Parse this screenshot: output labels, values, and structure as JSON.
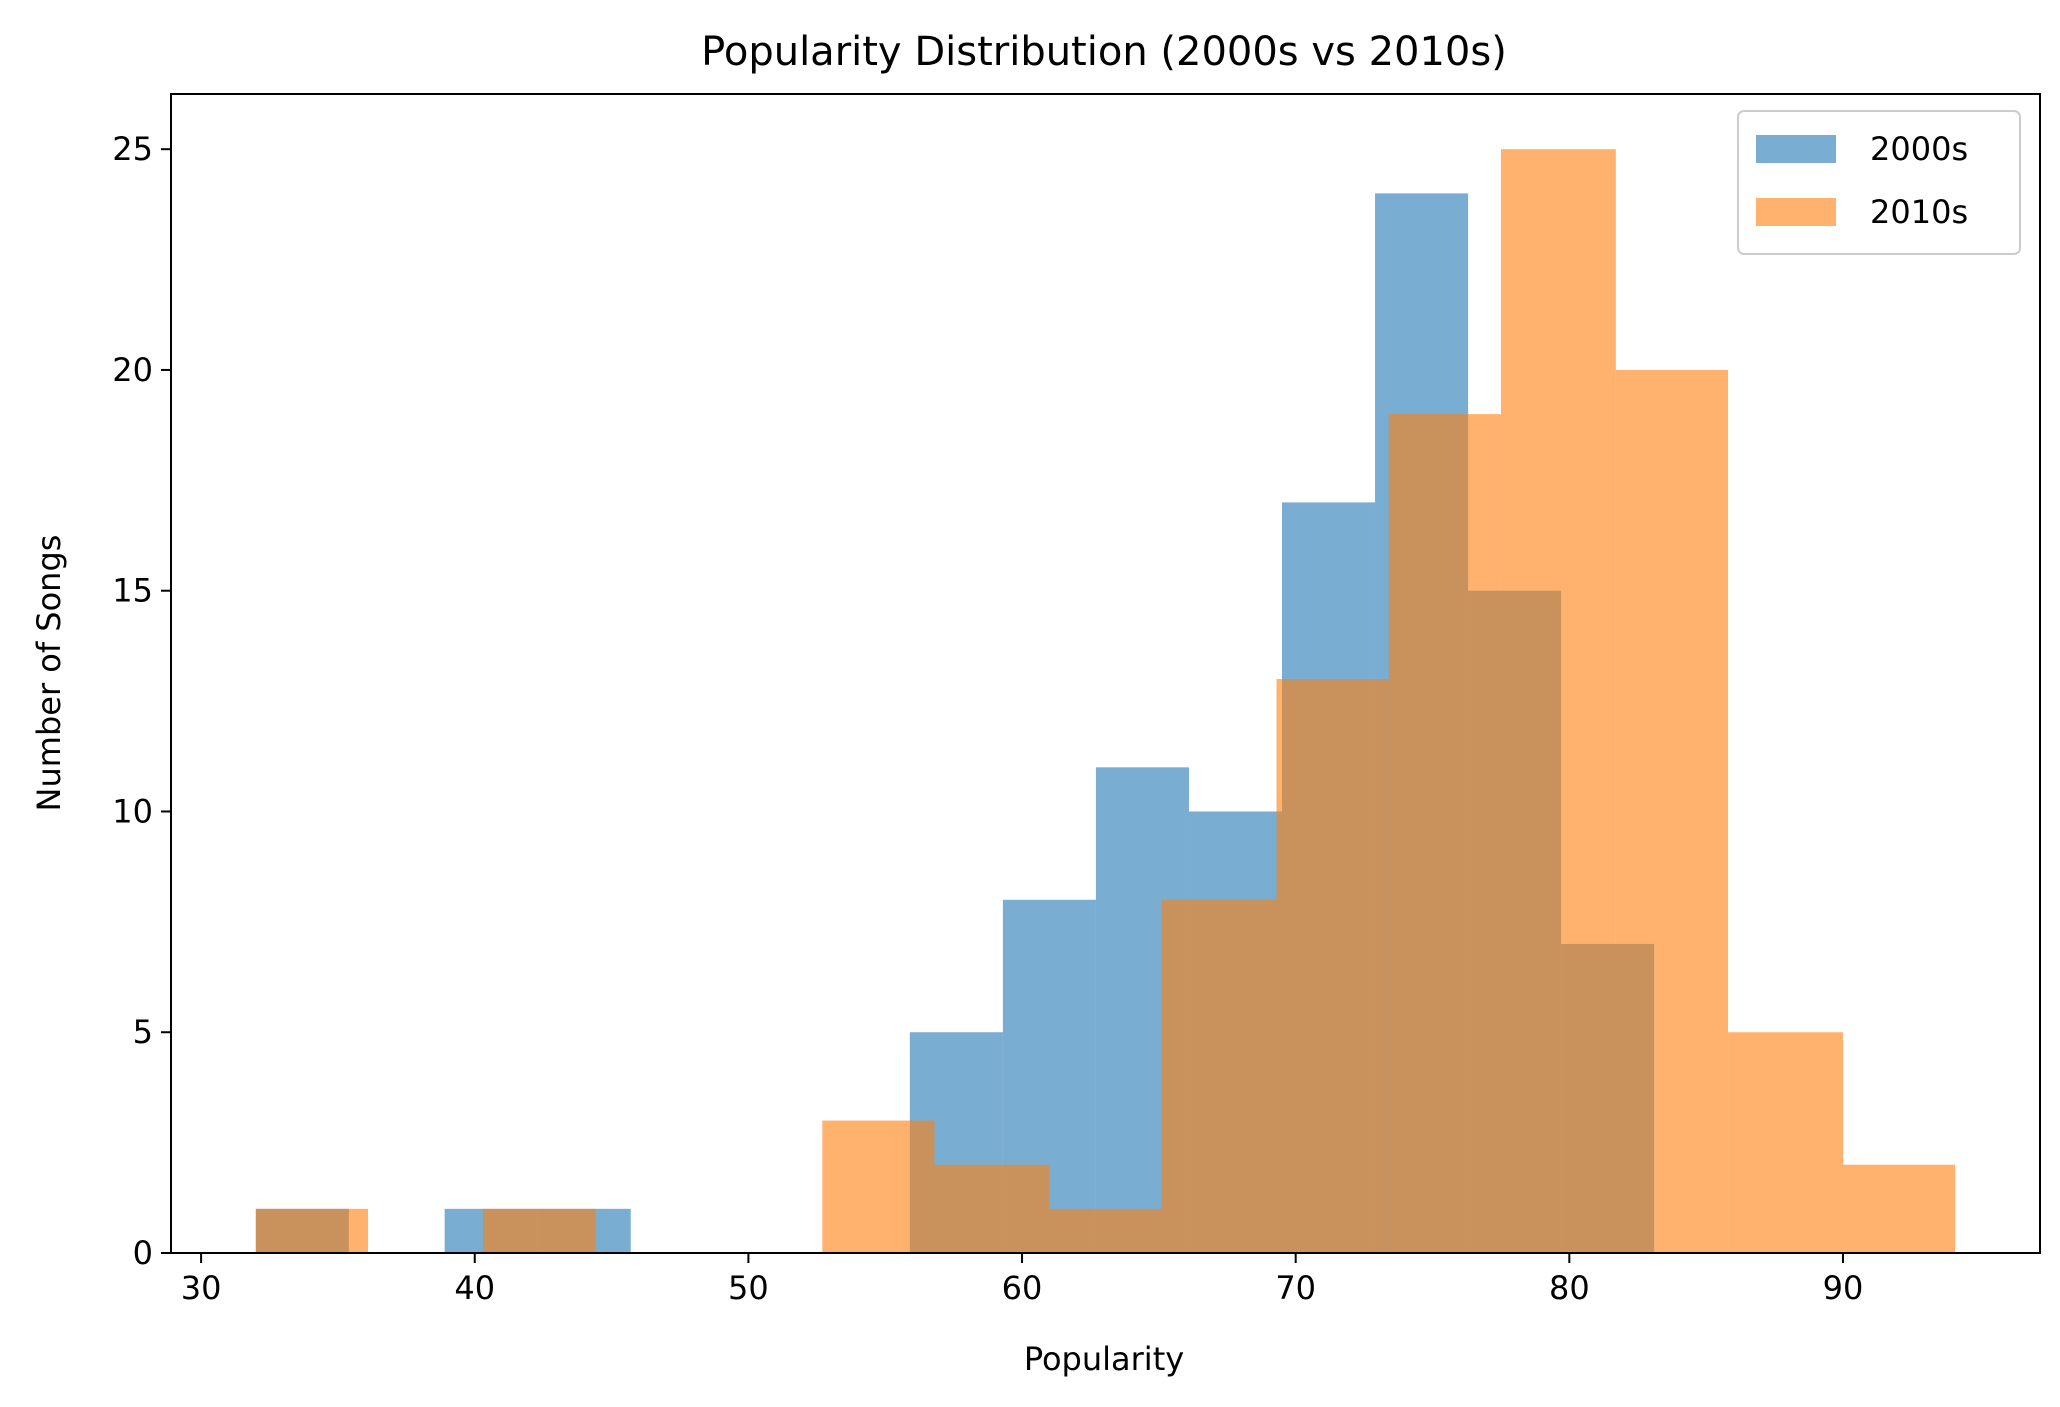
{
  "chart_data": {
    "type": "bar",
    "title": "Popularity Distribution (2000s vs 2010s)",
    "xlabel": "Popularity",
    "ylabel": "Number of Songs",
    "xlim": [
      28.9,
      97.2
    ],
    "ylim": [
      0,
      26.25
    ],
    "xticks": [
      30,
      40,
      50,
      60,
      70,
      80,
      90
    ],
    "yticks": [
      0,
      5,
      10,
      15,
      20,
      25
    ],
    "grid": false,
    "legend_position": "top-right",
    "series": [
      {
        "name": "2000s",
        "color": "#1f77b4",
        "opacity": 0.6,
        "bins": [
          {
            "x0": 32.0,
            "x1": 35.4,
            "count": 1
          },
          {
            "x0": 35.4,
            "x1": 38.9,
            "count": 0
          },
          {
            "x0": 38.9,
            "x1": 42.3,
            "count": 1
          },
          {
            "x0": 42.3,
            "x1": 45.7,
            "count": 1
          },
          {
            "x0": 45.7,
            "x1": 49.1,
            "count": 0
          },
          {
            "x0": 49.1,
            "x1": 52.5,
            "count": 0
          },
          {
            "x0": 52.5,
            "x1": 55.9,
            "count": 0
          },
          {
            "x0": 55.9,
            "x1": 59.3,
            "count": 5
          },
          {
            "x0": 59.3,
            "x1": 62.7,
            "count": 8
          },
          {
            "x0": 62.7,
            "x1": 66.1,
            "count": 11
          },
          {
            "x0": 66.1,
            "x1": 69.5,
            "count": 10
          },
          {
            "x0": 69.5,
            "x1": 72.9,
            "count": 17
          },
          {
            "x0": 72.9,
            "x1": 76.3,
            "count": 24
          },
          {
            "x0": 76.3,
            "x1": 79.7,
            "count": 15
          },
          {
            "x0": 79.7,
            "x1": 83.1,
            "count": 7
          }
        ]
      },
      {
        "name": "2010s",
        "color": "#ff7f0e",
        "opacity": 0.6,
        "bins": [
          {
            "x0": 32.0,
            "x1": 36.1,
            "count": 1
          },
          {
            "x0": 36.1,
            "x1": 40.3,
            "count": 0
          },
          {
            "x0": 40.3,
            "x1": 44.4,
            "count": 1
          },
          {
            "x0": 44.4,
            "x1": 48.6,
            "count": 0
          },
          {
            "x0": 48.6,
            "x1": 52.7,
            "count": 0
          },
          {
            "x0": 52.7,
            "x1": 56.8,
            "count": 3
          },
          {
            "x0": 56.8,
            "x1": 61.0,
            "count": 2
          },
          {
            "x0": 61.0,
            "x1": 65.1,
            "count": 1
          },
          {
            "x0": 65.1,
            "x1": 69.3,
            "count": 8
          },
          {
            "x0": 69.3,
            "x1": 73.4,
            "count": 13
          },
          {
            "x0": 73.4,
            "x1": 77.5,
            "count": 19
          },
          {
            "x0": 77.5,
            "x1": 81.7,
            "count": 25
          },
          {
            "x0": 81.7,
            "x1": 85.8,
            "count": 20
          },
          {
            "x0": 85.8,
            "x1": 90.0,
            "count": 5
          },
          {
            "x0": 90.0,
            "x1": 94.1,
            "count": 2
          }
        ]
      }
    ]
  }
}
